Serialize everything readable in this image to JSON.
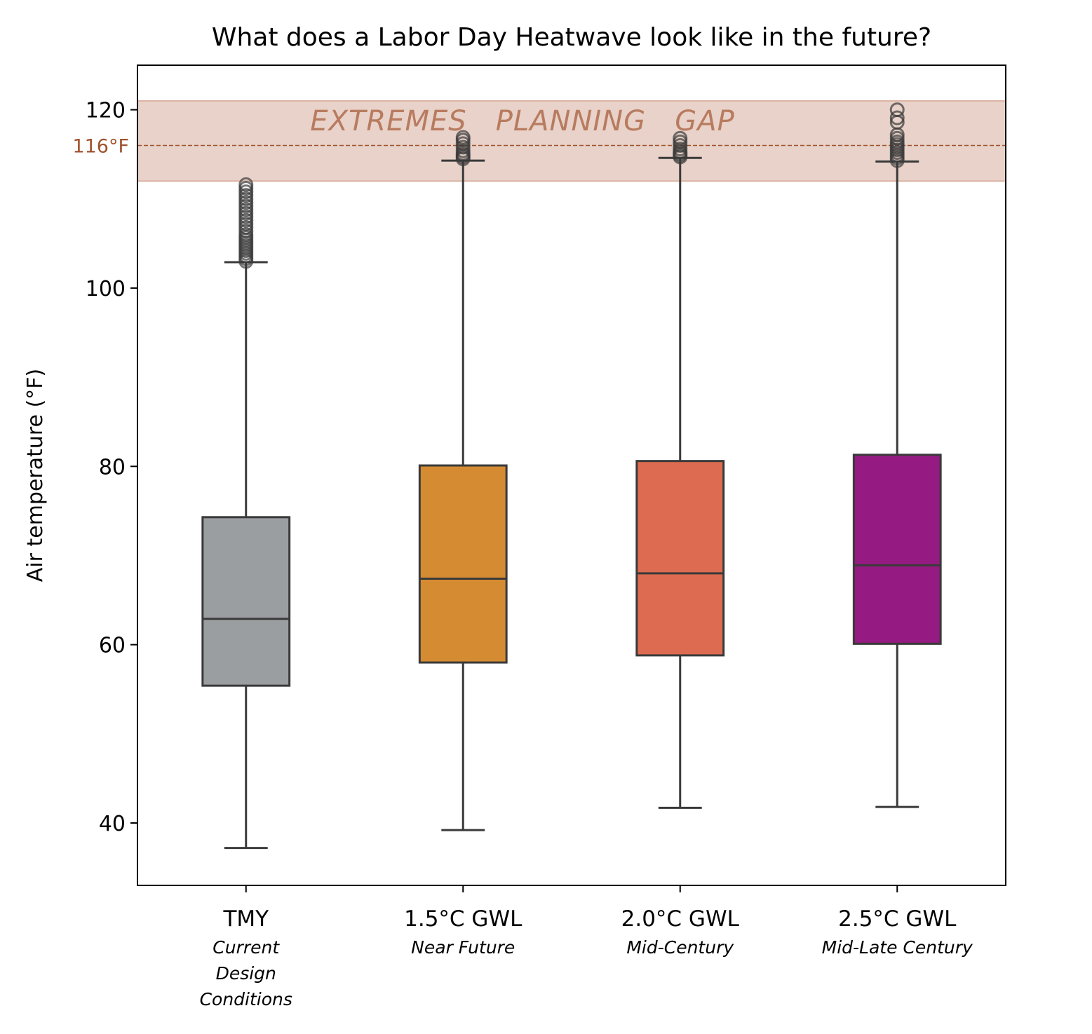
{
  "chart_data": {
    "type": "box",
    "title": "What does a Labor Day Heatwave look like in the future?",
    "ylabel": "Air temperature (°F)",
    "xlabel": "",
    "ylim": [
      33,
      125
    ],
    "yticks": [
      40,
      60,
      80,
      100,
      120
    ],
    "grid": false,
    "categories": [
      {
        "label": "TMY",
        "sublabel": [
          "Current",
          "Design",
          "Conditions"
        ],
        "color": "#9b9ea1"
      },
      {
        "label": "1.5°C GWL",
        "sublabel": [
          "Near Future"
        ],
        "color": "#d58b32"
      },
      {
        "label": "2.0°C GWL",
        "sublabel": [
          "Mid-Century"
        ],
        "color": "#dd6b51"
      },
      {
        "label": "2.5°C GWL",
        "sublabel": [
          "Mid-Late Century"
        ],
        "color": "#951b82"
      }
    ],
    "boxes": [
      {
        "whisker_low": 37.2,
        "q1": 55.4,
        "median": 62.9,
        "q3": 74.3,
        "whisker_high": 102.9,
        "outliers": [
          103.0,
          103.3,
          103.6,
          103.9,
          104.2,
          104.5,
          104.8,
          105.1,
          105.4,
          105.7,
          106.0,
          106.4,
          106.8,
          107.2,
          107.6,
          108.0,
          108.4,
          108.8,
          109.2,
          109.6,
          110.0,
          110.4,
          110.8,
          111.2,
          111.6
        ]
      },
      {
        "whisker_low": 39.2,
        "q1": 58.0,
        "median": 67.4,
        "q3": 80.1,
        "whisker_high": 114.3,
        "outliers": [
          114.5,
          114.7,
          114.9,
          115.1,
          115.4,
          115.8,
          116.2,
          116.6,
          116.9
        ]
      },
      {
        "whisker_low": 41.7,
        "q1": 58.8,
        "median": 68.0,
        "q3": 80.6,
        "whisker_high": 114.6,
        "outliers": [
          114.7,
          114.9,
          115.1,
          115.3,
          115.6,
          116.0,
          116.4,
          116.8
        ]
      },
      {
        "whisker_low": 41.8,
        "q1": 60.1,
        "median": 68.9,
        "q3": 81.3,
        "whisker_high": 114.2,
        "outliers": [
          114.3,
          114.6,
          114.9,
          115.2,
          115.5,
          115.8,
          116.1,
          116.4,
          116.8,
          117.2,
          118.6,
          119.1,
          120.0
        ]
      }
    ],
    "band": {
      "ymin": 112.0,
      "ymax": 121.0,
      "label": "EXTREMES   PLANNING   GAP",
      "color": "#e8d2c9"
    },
    "reference_line": {
      "y": 116,
      "label": "116°F",
      "color": "#a0522d"
    }
  }
}
